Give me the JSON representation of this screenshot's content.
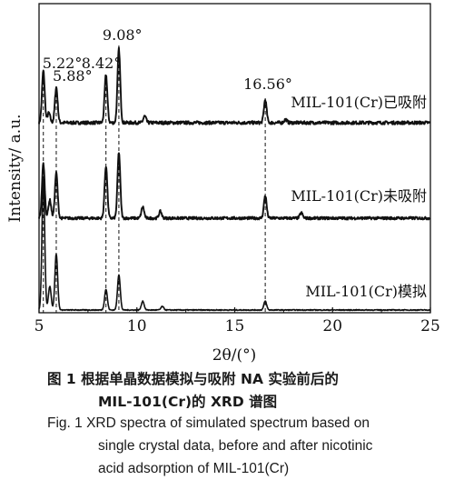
{
  "chart_data": {
    "type": "line",
    "xlabel_main": "2θ/(°)",
    "ylabel": "Intensity/ a.u.",
    "xlim": [
      5,
      25
    ],
    "xticks": [
      5,
      10,
      15,
      20,
      25
    ],
    "grid": false,
    "legend": "labels placed next to each curve",
    "peak_markers": [
      {
        "x": 5.22,
        "label": "5.22°"
      },
      {
        "x": 5.88,
        "label": "5.88°"
      },
      {
        "x": 8.42,
        "label": "8.42°"
      },
      {
        "x": 9.08,
        "label": "9.08°"
      },
      {
        "x": 16.56,
        "label": "16.56°"
      }
    ],
    "series": [
      {
        "name": "MIL-101(Cr)已吸附",
        "peaks": [
          [
            5.22,
            0.95
          ],
          [
            5.5,
            0.18
          ],
          [
            5.88,
            0.65
          ],
          [
            8.42,
            0.88
          ],
          [
            9.08,
            1.35
          ],
          [
            10.4,
            0.12
          ],
          [
            16.56,
            0.42
          ],
          [
            17.6,
            0.06
          ]
        ]
      },
      {
        "name": "MIL-101(Cr)未吸附",
        "peaks": [
          [
            5.22,
            1.2
          ],
          [
            5.55,
            0.4
          ],
          [
            5.88,
            1.0
          ],
          [
            8.42,
            1.15
          ],
          [
            9.08,
            1.45
          ],
          [
            10.3,
            0.25
          ],
          [
            11.2,
            0.15
          ],
          [
            16.56,
            0.5
          ],
          [
            18.4,
            0.12
          ]
        ]
      },
      {
        "name": "MIL-101(Cr)模拟",
        "peaks": [
          [
            5.22,
            2.2
          ],
          [
            5.55,
            0.4
          ],
          [
            5.88,
            0.95
          ],
          [
            8.42,
            0.35
          ],
          [
            9.08,
            0.6
          ],
          [
            10.3,
            0.15
          ],
          [
            11.3,
            0.06
          ],
          [
            16.56,
            0.15
          ]
        ]
      }
    ]
  },
  "caption": {
    "cn_line1": "图 1   根据单晶数据模拟与吸附 NA 实验前后的",
    "cn_line2": "MIL-101(Cr)的 XRD 谱图",
    "en_line1": "Fig. 1    XRD spectra of simulated spectrum based on",
    "en_line2": "single crystal data, before and after nicotinic",
    "en_line3": "acid adsorption of MIL-101(Cr)"
  }
}
